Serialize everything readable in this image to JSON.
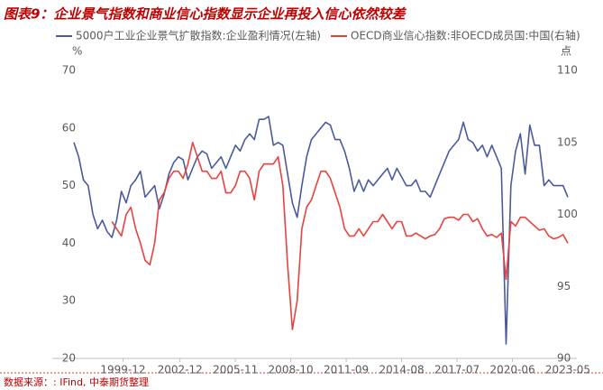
{
  "chart_data": {
    "type": "line",
    "title": "图表9：企业景气指数和商业信心指数显示企业再投入信心依然较差",
    "source": "数据来源：: IFind, 中泰期货整理",
    "y_unit": "%",
    "y2_unit": "点",
    "x": [
      "1997-05",
      "1997-08",
      "1997-11",
      "1998-02",
      "1998-05",
      "1998-08",
      "1998-11",
      "1999-02",
      "1999-05",
      "1999-08",
      "1999-11",
      "2000-02",
      "2000-05",
      "2000-08",
      "2000-11",
      "2001-02",
      "2001-05",
      "2001-08",
      "2001-11",
      "2002-02",
      "2002-05",
      "2002-08",
      "2002-11",
      "2003-02",
      "2003-05",
      "2003-08",
      "2003-11",
      "2004-02",
      "2004-05",
      "2004-08",
      "2004-11",
      "2005-02",
      "2005-05",
      "2005-08",
      "2005-11",
      "2006-02",
      "2006-05",
      "2006-08",
      "2006-11",
      "2007-02",
      "2007-05",
      "2007-08",
      "2007-11",
      "2008-02",
      "2008-05",
      "2008-08",
      "2008-11",
      "2009-02",
      "2009-05",
      "2009-08",
      "2009-11",
      "2010-02",
      "2010-05",
      "2010-08",
      "2010-11",
      "2011-02",
      "2011-05",
      "2011-08",
      "2011-11",
      "2012-02",
      "2012-05",
      "2012-08",
      "2012-11",
      "2013-02",
      "2013-05",
      "2013-08",
      "2013-11",
      "2014-02",
      "2014-05",
      "2014-08",
      "2014-11",
      "2015-02",
      "2015-05",
      "2015-08",
      "2015-11",
      "2016-02",
      "2016-05",
      "2016-08",
      "2016-11",
      "2017-02",
      "2017-05",
      "2017-08",
      "2017-11",
      "2018-02",
      "2018-05",
      "2018-08",
      "2018-11",
      "2019-02",
      "2019-05",
      "2019-08",
      "2019-11",
      "2020-02",
      "2020-05",
      "2020-08",
      "2020-11",
      "2021-02",
      "2021-05",
      "2021-08",
      "2021-11",
      "2022-02",
      "2022-05",
      "2022-08",
      "2022-11",
      "2023-02",
      "2023-05"
    ],
    "xlim": [
      "1997-05",
      "2023-05"
    ],
    "xticks": [
      "1999-12",
      "2002-12",
      "2005-11",
      "2008-10",
      "2011-09",
      "2014-08",
      "2017-07",
      "2020-06",
      "2023-05"
    ],
    "ylim": [
      20,
      70
    ],
    "yticks": [
      20,
      30,
      40,
      50,
      60,
      70
    ],
    "y2lim": [
      90,
      110
    ],
    "y2ticks": [
      90,
      95,
      100,
      105,
      110
    ],
    "series": [
      {
        "name": "5000户工业企业景气扩散指数:企业盈利情况(左轴)",
        "color": "#4a5a9c",
        "axis": "y",
        "values": [
          57.5,
          55,
          51,
          50,
          45,
          42.5,
          44,
          42,
          41,
          44,
          49,
          47,
          50,
          51,
          52.5,
          48,
          49,
          50,
          46,
          48.5,
          52,
          54,
          55,
          54.5,
          51,
          53,
          55,
          56,
          55.5,
          53,
          54,
          55,
          53,
          55,
          57,
          56,
          58,
          59,
          58,
          61.5,
          61.5,
          62,
          57,
          57.5,
          57,
          52,
          47,
          44.5,
          50,
          55,
          58,
          59,
          60,
          61,
          60.5,
          58,
          58,
          56,
          53,
          49,
          51,
          49,
          51,
          50,
          51,
          52,
          53,
          51,
          53,
          51.5,
          50,
          50,
          51,
          49,
          49,
          48,
          50,
          52,
          54,
          56,
          57,
          58,
          61,
          58,
          57.5,
          56,
          57,
          55,
          57,
          55,
          53,
          22.5,
          50,
          56,
          59,
          52,
          60.5,
          57,
          57,
          50,
          51,
          50,
          50,
          50,
          48
        ]
      },
      {
        "name": "OECD商业信心指数:非OECD成员国:中国(右轴)",
        "color": "#e8423f",
        "axis": "y2",
        "values": [
          null,
          null,
          null,
          null,
          null,
          null,
          null,
          null,
          99.5,
          99,
          98.5,
          100,
          100.5,
          99,
          98,
          96.8,
          96.5,
          98,
          101,
          101.5,
          102.5,
          103,
          103,
          102.5,
          103.5,
          105,
          104,
          103,
          103,
          102.5,
          102.5,
          103,
          101.5,
          101.5,
          102,
          103,
          103,
          102.5,
          101,
          103,
          103.5,
          103.5,
          103.5,
          104,
          102,
          96.5,
          92,
          94,
          99,
          100.5,
          101,
          102,
          103,
          103,
          102.5,
          101.5,
          100.5,
          99,
          98.5,
          98.5,
          99,
          98.5,
          99,
          99.5,
          99.5,
          100,
          99.5,
          99,
          99.5,
          99.5,
          98.5,
          98.5,
          98.7,
          98.5,
          98.3,
          98.5,
          98.6,
          99,
          99.7,
          99.8,
          99.8,
          99.6,
          100,
          100,
          99.5,
          99.7,
          99,
          98.5,
          98.6,
          98.4,
          98.7,
          95.5,
          99.5,
          99.2,
          99.8,
          99.8,
          99.5,
          99.2,
          98.9,
          99,
          98.5,
          98.3,
          98.4,
          98.6,
          98
        ]
      }
    ],
    "legend": "top",
    "grid": false
  }
}
